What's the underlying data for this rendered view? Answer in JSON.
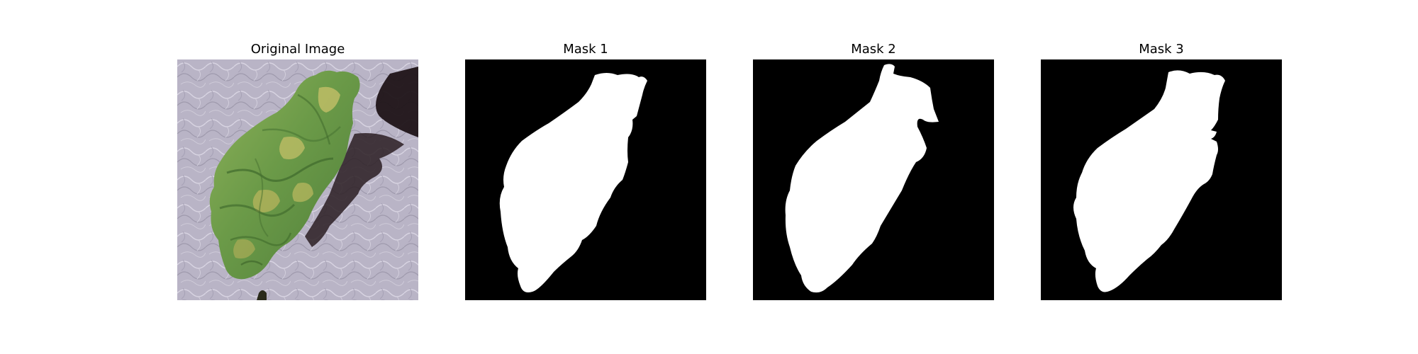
{
  "panels": [
    {
      "title": "Original Image"
    },
    {
      "title": "Mask 1"
    },
    {
      "title": "Mask 2"
    },
    {
      "title": "Mask 3"
    }
  ],
  "colors": {
    "mask_background": "#000000",
    "mask_foreground": "#ffffff",
    "leaf_green": "#6b9a48",
    "leaf_yellow": "#c9c26a",
    "surface": "#b7b2c4",
    "shadow": "#1f1418"
  }
}
